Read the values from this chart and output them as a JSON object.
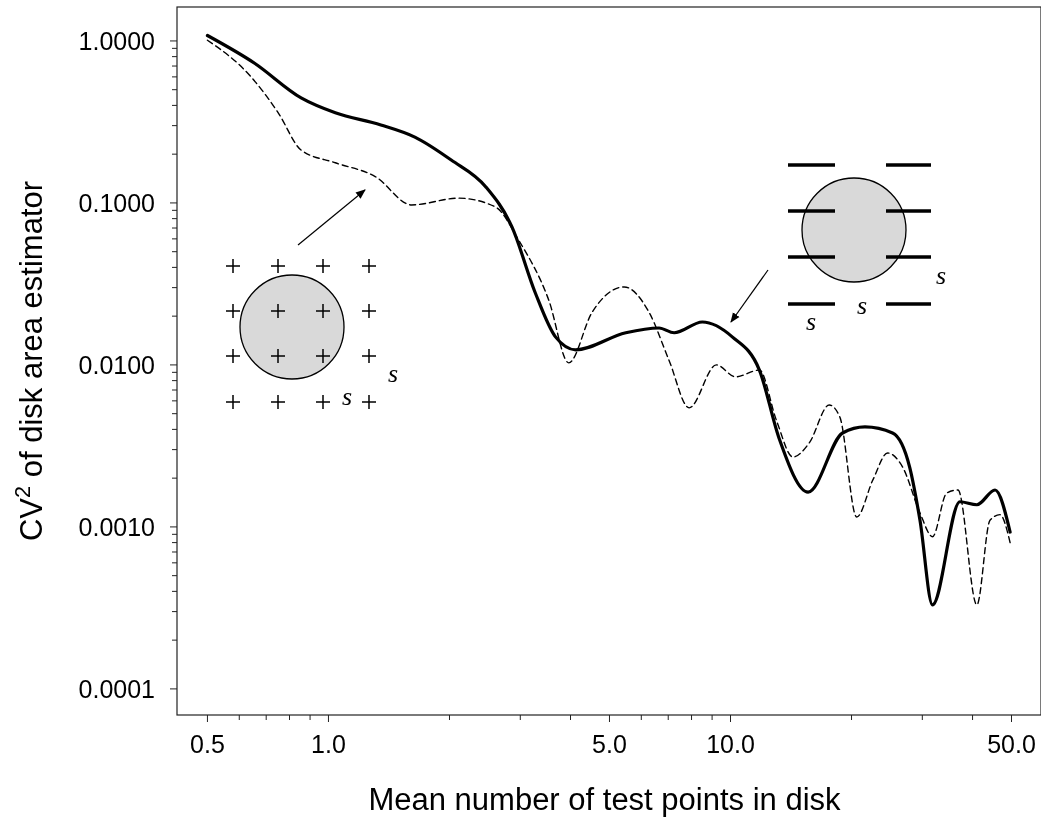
{
  "chart_data": {
    "type": "line",
    "xlabel": "Mean number of test points in disk",
    "ylabel": "CV$^{2}$ of disk area estimator",
    "log": "xy",
    "grid": false,
    "marker": "none",
    "xlim": [
      0.42,
      59.2
    ],
    "ylim": [
      6.9e-05,
      1.62
    ],
    "xticks": [
      {
        "value": 0.5,
        "label": "0.5"
      },
      {
        "value": 0.6,
        "label": null
      },
      {
        "value": 0.7,
        "label": null
      },
      {
        "value": 0.8,
        "label": null
      },
      {
        "value": 0.9,
        "label": null
      },
      {
        "value": 1,
        "label": "1.0"
      },
      {
        "value": 2,
        "label": null
      },
      {
        "value": 3,
        "label": null
      },
      {
        "value": 4,
        "label": null
      },
      {
        "value": 5,
        "label": "5.0"
      },
      {
        "value": 6,
        "label": null
      },
      {
        "value": 7,
        "label": null
      },
      {
        "value": 8,
        "label": null
      },
      {
        "value": 9,
        "label": null
      },
      {
        "value": 10,
        "label": "10.0"
      },
      {
        "value": 20,
        "label": null
      },
      {
        "value": 30,
        "label": null
      },
      {
        "value": 40,
        "label": null
      },
      {
        "value": 50,
        "label": "50.0"
      }
    ],
    "yticks": [
      {
        "value": 0.0001,
        "label": "0.0001"
      },
      {
        "value": 0.0002,
        "label": null
      },
      {
        "value": 0.0003,
        "label": null
      },
      {
        "value": 0.0004,
        "label": null
      },
      {
        "value": 0.0005,
        "label": null
      },
      {
        "value": 0.0006,
        "label": null
      },
      {
        "value": 0.0007,
        "label": null
      },
      {
        "value": 0.0008,
        "label": null
      },
      {
        "value": 0.0009,
        "label": null
      },
      {
        "value": 0.001,
        "label": "0.0010"
      },
      {
        "value": 0.002,
        "label": null
      },
      {
        "value": 0.003,
        "label": null
      },
      {
        "value": 0.004,
        "label": null
      },
      {
        "value": 0.005,
        "label": null
      },
      {
        "value": 0.006,
        "label": null
      },
      {
        "value": 0.007,
        "label": null
      },
      {
        "value": 0.008,
        "label": null
      },
      {
        "value": 0.009,
        "label": null
      },
      {
        "value": 0.01,
        "label": "0.0100"
      },
      {
        "value": 0.02,
        "label": null
      },
      {
        "value": 0.03,
        "label": null
      },
      {
        "value": 0.04,
        "label": null
      },
      {
        "value": 0.05,
        "label": null
      },
      {
        "value": 0.06,
        "label": null
      },
      {
        "value": 0.07,
        "label": null
      },
      {
        "value": 0.08,
        "label": null
      },
      {
        "value": 0.09,
        "label": null
      },
      {
        "value": 0.1,
        "label": "0.1000"
      },
      {
        "value": 0.2,
        "label": null
      },
      {
        "value": 0.3,
        "label": null
      },
      {
        "value": 0.4,
        "label": null
      },
      {
        "value": 0.5,
        "label": null
      },
      {
        "value": 0.6,
        "label": null
      },
      {
        "value": 0.7,
        "label": null
      },
      {
        "value": 0.8,
        "label": null
      },
      {
        "value": 0.9,
        "label": null
      },
      {
        "value": 1,
        "label": "1.0000"
      }
    ],
    "annotations": [
      "s",
      "s",
      "s",
      "s",
      "s"
    ],
    "series": [
      {
        "color": "#000000",
        "line_style": "solid",
        "x": [
          0.5,
          0.655,
          0.855,
          1.04,
          1.35,
          1.64,
          2.02,
          2.46,
          2.86,
          3.27,
          3.67,
          4.12,
          5.49,
          6.64,
          7.24,
          8.51,
          10.1,
          11.8,
          13.2,
          15.6,
          19.0,
          21.6,
          25.3,
          27.9,
          29.6,
          31.8,
          37.2,
          41.0,
          45.5,
          49.6
        ],
        "values": [
          1.08,
          0.728,
          0.445,
          0.36,
          0.303,
          0.255,
          0.184,
          0.126,
          0.0711,
          0.0278,
          0.0149,
          0.0124,
          0.0158,
          0.0169,
          0.0158,
          0.0184,
          0.0149,
          0.0093,
          0.00354,
          0.00164,
          0.0038,
          0.00414,
          0.0038,
          0.00234,
          0.0011,
          0.00033,
          0.00143,
          0.00137,
          0.00169,
          0.00093
        ]
      },
      {
        "color": "#000000",
        "line_style": "dashed",
        "x": [
          0.5,
          0.642,
          0.75,
          0.855,
          1.04,
          1.31,
          1.61,
          2.11,
          2.6,
          2.97,
          3.53,
          3.96,
          4.52,
          5.44,
          6.28,
          7.03,
          7.89,
          9.22,
          10.3,
          11.8,
          13.0,
          14.3,
          15.7,
          17.6,
          18.7,
          20.6,
          22.6,
          24.6,
          26.8,
          29.6,
          31.8,
          34.5,
          36.8,
          41.0,
          44.2,
          46.8,
          49.6
        ],
        "values": [
          1.01,
          0.6,
          0.36,
          0.212,
          0.177,
          0.145,
          0.0972,
          0.107,
          0.0945,
          0.0591,
          0.0252,
          0.0103,
          0.021,
          0.0303,
          0.021,
          0.0107,
          0.00543,
          0.01,
          0.00844,
          0.0093,
          0.00457,
          0.0027,
          0.0033,
          0.00566,
          0.00478,
          0.00115,
          0.00195,
          0.00286,
          0.00234,
          0.00122,
          0.00087,
          0.00162,
          0.00169,
          0.00033,
          0.0011,
          0.00119,
          0.0008
        ]
      }
    ]
  }
}
